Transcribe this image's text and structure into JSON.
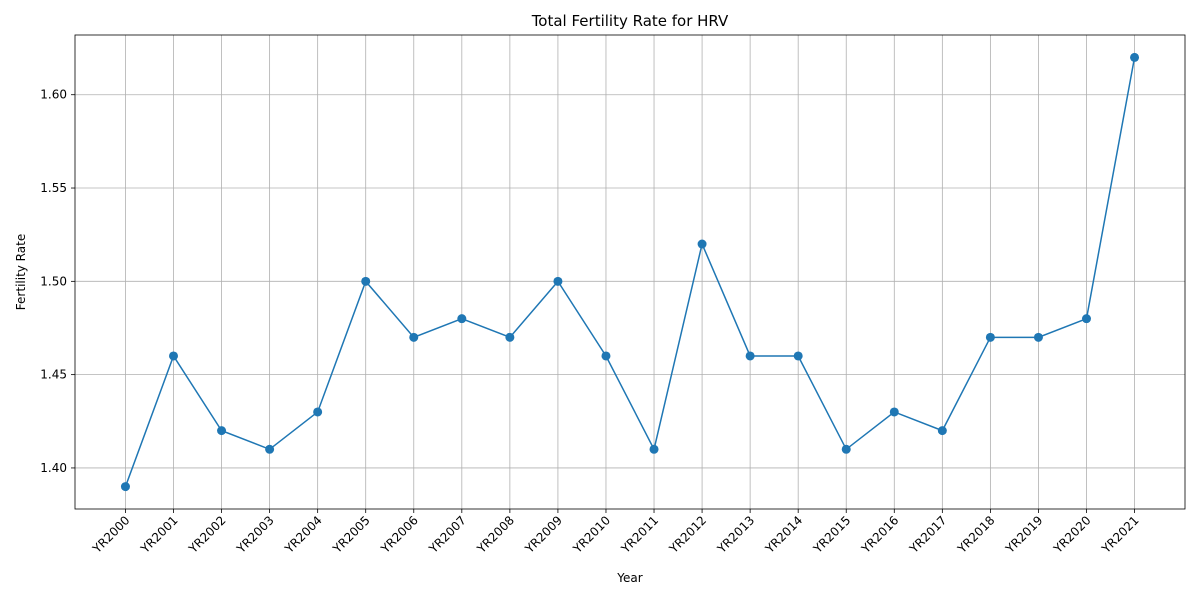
{
  "chart_data": {
    "type": "line",
    "title": "Total Fertility Rate for HRV",
    "xlabel": "Year",
    "ylabel": "Fertility Rate",
    "categories": [
      "YR2000",
      "YR2001",
      "YR2002",
      "YR2003",
      "YR2004",
      "YR2005",
      "YR2006",
      "YR2007",
      "YR2008",
      "YR2009",
      "YR2010",
      "YR2011",
      "YR2012",
      "YR2013",
      "YR2014",
      "YR2015",
      "YR2016",
      "YR2017",
      "YR2018",
      "YR2019",
      "YR2020",
      "YR2021"
    ],
    "series": [
      {
        "values": [
          1.39,
          1.46,
          1.42,
          1.41,
          1.43,
          1.5,
          1.47,
          1.48,
          1.47,
          1.5,
          1.46,
          1.41,
          1.52,
          1.46,
          1.46,
          1.41,
          1.43,
          1.42,
          1.47,
          1.47,
          1.48,
          1.62
        ],
        "color": "#1f77b4",
        "marker": "circle"
      }
    ],
    "yticks": [
      "1.40",
      "1.45",
      "1.50",
      "1.55",
      "1.60"
    ],
    "ylim": [
      1.378,
      1.632
    ],
    "grid": true
  }
}
